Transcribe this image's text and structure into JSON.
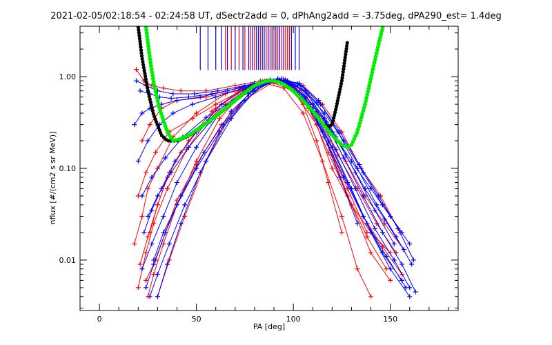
{
  "chart_data": {
    "type": "line",
    "title": "2021-02-05/02:18:54 - 02:24:58 UT, dSectr2add = 0, dPhAng2add = -3.75deg, dPA290_est=   1.4deg",
    "xlabel": "PA [deg]",
    "ylabel": "nflux [#/(cm2 s sr MeV)]",
    "xlim": [
      -10,
      185
    ],
    "ylim_log10": [
      -2.55,
      0.55
    ],
    "yscale": "log",
    "x_ticks": [
      0,
      50,
      100,
      150
    ],
    "x_tick_labels": [
      "0",
      "50",
      "100",
      "150"
    ],
    "y_ticks": [
      0.01,
      0.1,
      1.0
    ],
    "y_tick_labels": [
      "0.01",
      "0.10",
      "1.00"
    ],
    "grid": false,
    "colors": {
      "red_series": "#ff0000",
      "blue_series": "#0000ff",
      "fit_black": "#000000",
      "fit_green": "#00ee00"
    },
    "fit_black": {
      "x": [
        20,
        22,
        25,
        28,
        32,
        35,
        40,
        45,
        50,
        55,
        60,
        65,
        70,
        75,
        80,
        85,
        88,
        92,
        95,
        100,
        105,
        110,
        115,
        118,
        120,
        122,
        125,
        128
      ],
      "y": [
        3.5,
        1.6,
        0.7,
        0.38,
        0.23,
        0.2,
        0.2,
        0.22,
        0.26,
        0.31,
        0.37,
        0.45,
        0.55,
        0.67,
        0.8,
        0.88,
        0.91,
        0.88,
        0.83,
        0.7,
        0.55,
        0.42,
        0.31,
        0.28,
        0.3,
        0.45,
        0.9,
        2.5
      ]
    },
    "fit_green": {
      "x": [
        24,
        26,
        28,
        31,
        35,
        38,
        42,
        46,
        50,
        55,
        60,
        65,
        70,
        75,
        80,
        85,
        88,
        92,
        95,
        100,
        105,
        110,
        115,
        120,
        125,
        128,
        130,
        133,
        137,
        141,
        145,
        148
      ],
      "y": [
        3.5,
        1.6,
        0.85,
        0.45,
        0.25,
        0.2,
        0.21,
        0.23,
        0.26,
        0.31,
        0.37,
        0.45,
        0.55,
        0.67,
        0.8,
        0.88,
        0.91,
        0.88,
        0.83,
        0.7,
        0.55,
        0.42,
        0.31,
        0.23,
        0.18,
        0.17,
        0.18,
        0.25,
        0.5,
        1.2,
        2.8,
        5.0
      ]
    },
    "red_series": [
      {
        "x": [
          18,
          22,
          25,
          30,
          38,
          50,
          65,
          80,
          90,
          100,
          112,
          120,
          130,
          140,
          150
        ],
        "y": [
          0.015,
          0.03,
          0.06,
          0.1,
          0.22,
          0.4,
          0.65,
          0.8,
          0.85,
          0.7,
          0.3,
          0.1,
          0.04,
          0.02,
          0.012
        ]
      },
      {
        "x": [
          20,
          24,
          28,
          35,
          45,
          60,
          75,
          88,
          98,
          108,
          118,
          128,
          138,
          148
        ],
        "y": [
          0.005,
          0.012,
          0.025,
          0.06,
          0.16,
          0.45,
          0.75,
          0.9,
          0.8,
          0.45,
          0.15,
          0.05,
          0.018,
          0.008
        ]
      },
      {
        "x": [
          22,
          26,
          32,
          40,
          55,
          70,
          85,
          95,
          105,
          115,
          125,
          135,
          145,
          155
        ],
        "y": [
          0.2,
          0.3,
          0.45,
          0.55,
          0.6,
          0.7,
          0.9,
          0.95,
          0.8,
          0.5,
          0.25,
          0.1,
          0.05,
          0.02
        ]
      },
      {
        "x": [
          25,
          28,
          33,
          40,
          50,
          62,
          75,
          85,
          95,
          105,
          115,
          125,
          133,
          140
        ],
        "y": [
          0.004,
          0.007,
          0.015,
          0.04,
          0.12,
          0.35,
          0.7,
          0.85,
          0.75,
          0.4,
          0.12,
          0.03,
          0.008,
          0.004
        ]
      },
      {
        "x": [
          19,
          23,
          27,
          33,
          42,
          55,
          70,
          83,
          93,
          103,
          113,
          123,
          133,
          143,
          153
        ],
        "y": [
          1.2,
          0.9,
          0.8,
          0.75,
          0.7,
          0.7,
          0.8,
          0.9,
          0.92,
          0.7,
          0.35,
          0.14,
          0.06,
          0.025,
          0.012
        ]
      },
      {
        "x": [
          21,
          25,
          30,
          36,
          46,
          58,
          72,
          86,
          96,
          106,
          116,
          126,
          136,
          146,
          156
        ],
        "y": [
          0.009,
          0.018,
          0.04,
          0.09,
          0.2,
          0.42,
          0.7,
          0.88,
          0.86,
          0.55,
          0.22,
          0.08,
          0.03,
          0.014,
          0.007
        ]
      },
      {
        "x": [
          26,
          30,
          35,
          42,
          52,
          65,
          78,
          88,
          98,
          108,
          118,
          128,
          138
        ],
        "y": [
          0.02,
          0.04,
          0.08,
          0.15,
          0.28,
          0.5,
          0.78,
          0.9,
          0.82,
          0.5,
          0.18,
          0.06,
          0.02
        ]
      },
      {
        "x": [
          20,
          24,
          29,
          36,
          48,
          60,
          74,
          87,
          97,
          107,
          117,
          127,
          137,
          147,
          157
        ],
        "y": [
          0.05,
          0.09,
          0.15,
          0.25,
          0.35,
          0.5,
          0.72,
          0.88,
          0.85,
          0.6,
          0.3,
          0.12,
          0.05,
          0.025,
          0.013
        ]
      },
      {
        "x": [
          24,
          29,
          34,
          40,
          50,
          63,
          77,
          90,
          100,
          110,
          120,
          130,
          140,
          150
        ],
        "y": [
          0.006,
          0.01,
          0.02,
          0.045,
          0.11,
          0.3,
          0.6,
          0.88,
          0.8,
          0.42,
          0.14,
          0.04,
          0.012,
          0.006
        ]
      },
      {
        "x": [
          30,
          36,
          44,
          55,
          68,
          80,
          90,
          98,
          105,
          112,
          118,
          125
        ],
        "y": [
          0.004,
          0.01,
          0.03,
          0.12,
          0.4,
          0.75,
          0.9,
          0.82,
          0.5,
          0.2,
          0.07,
          0.02
        ]
      }
    ],
    "blue_series": [
      {
        "x": [
          18,
          22,
          26,
          32,
          40,
          52,
          66,
          80,
          90,
          100,
          110,
          120,
          130,
          140,
          150,
          160
        ],
        "y": [
          0.3,
          0.4,
          0.45,
          0.5,
          0.55,
          0.6,
          0.7,
          0.85,
          0.9,
          0.8,
          0.5,
          0.25,
          0.12,
          0.06,
          0.03,
          0.015
        ]
      },
      {
        "x": [
          22,
          27,
          33,
          40,
          50,
          62,
          76,
          86,
          96,
          106,
          116,
          126,
          136,
          146,
          156
        ],
        "y": [
          0.008,
          0.015,
          0.03,
          0.07,
          0.17,
          0.4,
          0.72,
          0.9,
          0.88,
          0.55,
          0.22,
          0.08,
          0.03,
          0.012,
          0.006
        ]
      },
      {
        "x": [
          24,
          28,
          34,
          42,
          54,
          68,
          82,
          92,
          102,
          112,
          122,
          132,
          142,
          152,
          160
        ],
        "y": [
          0.005,
          0.009,
          0.02,
          0.05,
          0.15,
          0.42,
          0.8,
          0.95,
          0.8,
          0.42,
          0.16,
          0.06,
          0.022,
          0.01,
          0.005
        ]
      },
      {
        "x": [
          20,
          25,
          31,
          38,
          48,
          60,
          74,
          86,
          96,
          106,
          116,
          126,
          136,
          146,
          156
        ],
        "y": [
          0.12,
          0.2,
          0.3,
          0.4,
          0.5,
          0.6,
          0.75,
          0.88,
          0.9,
          0.7,
          0.4,
          0.2,
          0.09,
          0.04,
          0.02
        ]
      },
      {
        "x": [
          23,
          27,
          32,
          39,
          50,
          63,
          78,
          88,
          98,
          108,
          118,
          128,
          138,
          148,
          158
        ],
        "y": [
          0.02,
          0.035,
          0.06,
          0.12,
          0.25,
          0.5,
          0.8,
          0.92,
          0.85,
          0.5,
          0.2,
          0.07,
          0.025,
          0.011,
          0.005
        ]
      },
      {
        "x": [
          21,
          26,
          31,
          37,
          46,
          58,
          72,
          84,
          94,
          104,
          114,
          124,
          134,
          144,
          154,
          162
        ],
        "y": [
          0.7,
          0.65,
          0.6,
          0.58,
          0.6,
          0.65,
          0.75,
          0.88,
          0.95,
          0.8,
          0.5,
          0.25,
          0.11,
          0.05,
          0.022,
          0.01
        ]
      },
      {
        "x": [
          26,
          30,
          36,
          44,
          55,
          68,
          80,
          90,
          100,
          110,
          120,
          130,
          140,
          150,
          160
        ],
        "y": [
          0.004,
          0.007,
          0.015,
          0.04,
          0.12,
          0.35,
          0.7,
          0.9,
          0.82,
          0.45,
          0.17,
          0.06,
          0.02,
          0.008,
          0.004
        ]
      },
      {
        "x": [
          25,
          30,
          37,
          46,
          57,
          70,
          83,
          93,
          103,
          113,
          123,
          133,
          143,
          153,
          161
        ],
        "y": [
          0.03,
          0.05,
          0.09,
          0.17,
          0.32,
          0.55,
          0.8,
          0.92,
          0.85,
          0.55,
          0.25,
          0.1,
          0.04,
          0.018,
          0.009
        ]
      },
      {
        "x": [
          30,
          35,
          42,
          52,
          64,
          77,
          88,
          97,
          106,
          115,
          124,
          133
        ],
        "y": [
          0.004,
          0.009,
          0.025,
          0.09,
          0.3,
          0.65,
          0.88,
          0.9,
          0.6,
          0.25,
          0.08,
          0.025
        ]
      },
      {
        "x": [
          22,
          27,
          34,
          43,
          55,
          69,
          82,
          92,
          102,
          112,
          122,
          132,
          142,
          152
        ],
        "y": [
          0.05,
          0.08,
          0.13,
          0.22,
          0.36,
          0.55,
          0.8,
          0.92,
          0.84,
          0.52,
          0.22,
          0.09,
          0.035,
          0.015
        ]
      },
      {
        "x": [
          28,
          33,
          40,
          50,
          62,
          75,
          86,
          96,
          106,
          116,
          126,
          136,
          146,
          156,
          163
        ],
        "y": [
          0.01,
          0.02,
          0.04,
          0.1,
          0.25,
          0.55,
          0.85,
          0.92,
          0.7,
          0.35,
          0.13,
          0.05,
          0.02,
          0.009,
          0.0045
        ]
      },
      {
        "x": [
          19,
          24,
          30,
          38,
          49,
          61,
          75,
          87,
          97,
          107,
          117,
          127,
          137,
          147,
          157
        ],
        "y": [
          0.9,
          0.8,
          0.7,
          0.65,
          0.65,
          0.7,
          0.8,
          0.9,
          0.9,
          0.65,
          0.32,
          0.14,
          0.06,
          0.028,
          0.013
        ]
      }
    ],
    "top_markers": {
      "red_x": [
        65,
        68,
        72,
        75,
        78,
        80,
        83,
        86,
        88,
        90,
        92,
        94,
        96,
        97,
        98
      ],
      "blue_x": [
        52,
        56,
        60,
        63,
        66,
        70,
        74,
        77,
        79,
        81,
        82,
        84,
        85,
        87,
        89,
        91,
        93,
        95,
        99,
        101,
        103
      ]
    }
  }
}
